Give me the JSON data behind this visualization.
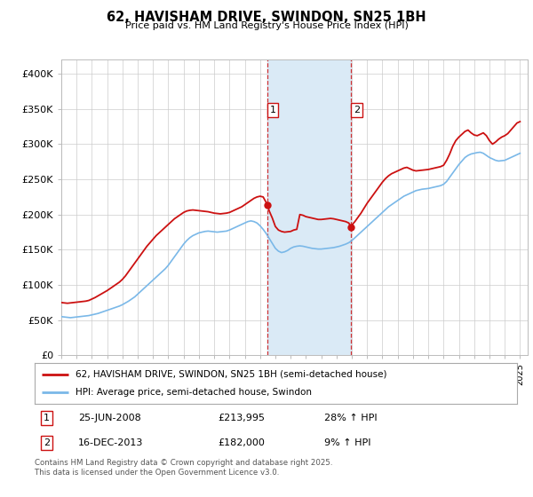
{
  "title": "62, HAVISHAM DRIVE, SWINDON, SN25 1BH",
  "subtitle": "Price paid vs. HM Land Registry's House Price Index (HPI)",
  "legend_line1": "62, HAVISHAM DRIVE, SWINDON, SN25 1BH (semi-detached house)",
  "legend_line2": "HPI: Average price, semi-detached house, Swindon",
  "footnote": "Contains HM Land Registry data © Crown copyright and database right 2025.\nThis data is licensed under the Open Government Licence v3.0.",
  "sale1_date": "25-JUN-2008",
  "sale1_price": "£213,995",
  "sale1_hpi": "28% ↑ HPI",
  "sale2_date": "16-DEC-2013",
  "sale2_price": "£182,000",
  "sale2_hpi": "9% ↑ HPI",
  "ylim": [
    0,
    420000
  ],
  "yticks": [
    0,
    50000,
    100000,
    150000,
    200000,
    250000,
    300000,
    350000,
    400000
  ],
  "background_color": "#ffffff",
  "hpi_color": "#7ab8e8",
  "price_color": "#cc1111",
  "shading_color": "#daeaf6",
  "vline_color": "#cc1111",
  "sale1_x": 2008.48,
  "sale1_y": 213995,
  "sale2_x": 2013.96,
  "sale2_y": 182000,
  "shade_x1": 2008.48,
  "shade_x2": 2013.96,
  "xmin": 1995,
  "xmax": 2025.5,
  "hpi_data": [
    [
      1995.0,
      55000
    ],
    [
      1995.2,
      54500
    ],
    [
      1995.4,
      54000
    ],
    [
      1995.6,
      53500
    ],
    [
      1995.8,
      54000
    ],
    [
      1996.0,
      54500
    ],
    [
      1996.2,
      55000
    ],
    [
      1996.4,
      55500
    ],
    [
      1996.6,
      56000
    ],
    [
      1996.8,
      56500
    ],
    [
      1997.0,
      57500
    ],
    [
      1997.2,
      58500
    ],
    [
      1997.4,
      59500
    ],
    [
      1997.6,
      61000
    ],
    [
      1997.8,
      62500
    ],
    [
      1998.0,
      64000
    ],
    [
      1998.2,
      65500
    ],
    [
      1998.4,
      67000
    ],
    [
      1998.6,
      68500
    ],
    [
      1998.8,
      70000
    ],
    [
      1999.0,
      72000
    ],
    [
      1999.2,
      74500
    ],
    [
      1999.4,
      77000
    ],
    [
      1999.6,
      80000
    ],
    [
      1999.8,
      83000
    ],
    [
      2000.0,
      87000
    ],
    [
      2000.2,
      91000
    ],
    [
      2000.4,
      95000
    ],
    [
      2000.6,
      99000
    ],
    [
      2000.8,
      103000
    ],
    [
      2001.0,
      107000
    ],
    [
      2001.2,
      111000
    ],
    [
      2001.4,
      115000
    ],
    [
      2001.6,
      119000
    ],
    [
      2001.8,
      123000
    ],
    [
      2002.0,
      128000
    ],
    [
      2002.2,
      134000
    ],
    [
      2002.4,
      140000
    ],
    [
      2002.6,
      146000
    ],
    [
      2002.8,
      152000
    ],
    [
      2003.0,
      158000
    ],
    [
      2003.2,
      163000
    ],
    [
      2003.4,
      167000
    ],
    [
      2003.6,
      170000
    ],
    [
      2003.8,
      172000
    ],
    [
      2004.0,
      174000
    ],
    [
      2004.2,
      175000
    ],
    [
      2004.4,
      176000
    ],
    [
      2004.6,
      176500
    ],
    [
      2004.8,
      176000
    ],
    [
      2005.0,
      175500
    ],
    [
      2005.2,
      175000
    ],
    [
      2005.4,
      175500
    ],
    [
      2005.6,
      176000
    ],
    [
      2005.8,
      176500
    ],
    [
      2006.0,
      178000
    ],
    [
      2006.2,
      180000
    ],
    [
      2006.4,
      182000
    ],
    [
      2006.6,
      184000
    ],
    [
      2006.8,
      186000
    ],
    [
      2007.0,
      188000
    ],
    [
      2007.2,
      190000
    ],
    [
      2007.4,
      191000
    ],
    [
      2007.6,
      190000
    ],
    [
      2007.8,
      188000
    ],
    [
      2008.0,
      184000
    ],
    [
      2008.2,
      179000
    ],
    [
      2008.4,
      173000
    ],
    [
      2008.6,
      166000
    ],
    [
      2008.8,
      159000
    ],
    [
      2009.0,
      152000
    ],
    [
      2009.2,
      148000
    ],
    [
      2009.4,
      146000
    ],
    [
      2009.6,
      147000
    ],
    [
      2009.8,
      149000
    ],
    [
      2010.0,
      152000
    ],
    [
      2010.2,
      154000
    ],
    [
      2010.4,
      155000
    ],
    [
      2010.6,
      155500
    ],
    [
      2010.8,
      155000
    ],
    [
      2011.0,
      154000
    ],
    [
      2011.2,
      153000
    ],
    [
      2011.4,
      152000
    ],
    [
      2011.6,
      151500
    ],
    [
      2011.8,
      151000
    ],
    [
      2012.0,
      151000
    ],
    [
      2012.2,
      151500
    ],
    [
      2012.4,
      152000
    ],
    [
      2012.6,
      152500
    ],
    [
      2012.8,
      153000
    ],
    [
      2013.0,
      154000
    ],
    [
      2013.2,
      155000
    ],
    [
      2013.4,
      156500
    ],
    [
      2013.6,
      158000
    ],
    [
      2013.8,
      160000
    ],
    [
      2014.0,
      163000
    ],
    [
      2014.2,
      167000
    ],
    [
      2014.4,
      171000
    ],
    [
      2014.6,
      175000
    ],
    [
      2014.8,
      179000
    ],
    [
      2015.0,
      183000
    ],
    [
      2015.2,
      187000
    ],
    [
      2015.4,
      191000
    ],
    [
      2015.6,
      195000
    ],
    [
      2015.8,
      199000
    ],
    [
      2016.0,
      203000
    ],
    [
      2016.2,
      207000
    ],
    [
      2016.4,
      211000
    ],
    [
      2016.6,
      214000
    ],
    [
      2016.8,
      217000
    ],
    [
      2017.0,
      220000
    ],
    [
      2017.2,
      223000
    ],
    [
      2017.4,
      226000
    ],
    [
      2017.6,
      228000
    ],
    [
      2017.8,
      230000
    ],
    [
      2018.0,
      232000
    ],
    [
      2018.2,
      234000
    ],
    [
      2018.4,
      235000
    ],
    [
      2018.6,
      236000
    ],
    [
      2018.8,
      236500
    ],
    [
      2019.0,
      237000
    ],
    [
      2019.2,
      238000
    ],
    [
      2019.4,
      239000
    ],
    [
      2019.6,
      240000
    ],
    [
      2019.8,
      241000
    ],
    [
      2020.0,
      243000
    ],
    [
      2020.2,
      247000
    ],
    [
      2020.4,
      253000
    ],
    [
      2020.6,
      259000
    ],
    [
      2020.8,
      265000
    ],
    [
      2021.0,
      271000
    ],
    [
      2021.2,
      276000
    ],
    [
      2021.4,
      281000
    ],
    [
      2021.6,
      284000
    ],
    [
      2021.8,
      286000
    ],
    [
      2022.0,
      287000
    ],
    [
      2022.2,
      288000
    ],
    [
      2022.4,
      288500
    ],
    [
      2022.6,
      287000
    ],
    [
      2022.8,
      284000
    ],
    [
      2023.0,
      281000
    ],
    [
      2023.2,
      279000
    ],
    [
      2023.4,
      277000
    ],
    [
      2023.6,
      276000
    ],
    [
      2023.8,
      276500
    ],
    [
      2024.0,
      277000
    ],
    [
      2024.2,
      279000
    ],
    [
      2024.4,
      281000
    ],
    [
      2024.6,
      283000
    ],
    [
      2024.8,
      285000
    ],
    [
      2025.0,
      287000
    ]
  ],
  "price_data": [
    [
      1995.0,
      75000
    ],
    [
      1995.2,
      74500
    ],
    [
      1995.4,
      74000
    ],
    [
      1995.6,
      74500
    ],
    [
      1995.8,
      75000
    ],
    [
      1996.0,
      75500
    ],
    [
      1996.2,
      76000
    ],
    [
      1996.4,
      76500
    ],
    [
      1996.6,
      77000
    ],
    [
      1996.8,
      78000
    ],
    [
      1997.0,
      80000
    ],
    [
      1997.2,
      82000
    ],
    [
      1997.4,
      84500
    ],
    [
      1997.6,
      87000
    ],
    [
      1997.8,
      89500
    ],
    [
      1998.0,
      92000
    ],
    [
      1998.2,
      95000
    ],
    [
      1998.4,
      98000
    ],
    [
      1998.6,
      101000
    ],
    [
      1998.8,
      104000
    ],
    [
      1999.0,
      108000
    ],
    [
      1999.2,
      113000
    ],
    [
      1999.4,
      119000
    ],
    [
      1999.6,
      125000
    ],
    [
      1999.8,
      131000
    ],
    [
      2000.0,
      137000
    ],
    [
      2000.2,
      143000
    ],
    [
      2000.4,
      149000
    ],
    [
      2000.6,
      155000
    ],
    [
      2000.8,
      160000
    ],
    [
      2001.0,
      165000
    ],
    [
      2001.2,
      170000
    ],
    [
      2001.4,
      174000
    ],
    [
      2001.6,
      178000
    ],
    [
      2001.8,
      182000
    ],
    [
      2002.0,
      186000
    ],
    [
      2002.2,
      190000
    ],
    [
      2002.4,
      194000
    ],
    [
      2002.6,
      197000
    ],
    [
      2002.8,
      200000
    ],
    [
      2003.0,
      203000
    ],
    [
      2003.2,
      205000
    ],
    [
      2003.4,
      206000
    ],
    [
      2003.6,
      206500
    ],
    [
      2003.8,
      206000
    ],
    [
      2004.0,
      205500
    ],
    [
      2004.2,
      205000
    ],
    [
      2004.4,
      204500
    ],
    [
      2004.6,
      204000
    ],
    [
      2004.8,
      203000
    ],
    [
      2005.0,
      202000
    ],
    [
      2005.2,
      201500
    ],
    [
      2005.4,
      201000
    ],
    [
      2005.6,
      201500
    ],
    [
      2005.8,
      202000
    ],
    [
      2006.0,
      203000
    ],
    [
      2006.2,
      205000
    ],
    [
      2006.4,
      207000
    ],
    [
      2006.6,
      209000
    ],
    [
      2006.8,
      211000
    ],
    [
      2007.0,
      214000
    ],
    [
      2007.2,
      217000
    ],
    [
      2007.4,
      220000
    ],
    [
      2007.6,
      223000
    ],
    [
      2007.8,
      225000
    ],
    [
      2008.0,
      226000
    ],
    [
      2008.2,
      225000
    ],
    [
      2008.48,
      213995
    ],
    [
      2008.6,
      205000
    ],
    [
      2008.8,
      195000
    ],
    [
      2009.0,
      183000
    ],
    [
      2009.2,
      178000
    ],
    [
      2009.4,
      176000
    ],
    [
      2009.6,
      175000
    ],
    [
      2009.8,
      175500
    ],
    [
      2010.0,
      176000
    ],
    [
      2010.2,
      178000
    ],
    [
      2010.4,
      179000
    ],
    [
      2010.6,
      200000
    ],
    [
      2010.8,
      199000
    ],
    [
      2011.0,
      197000
    ],
    [
      2011.2,
      196000
    ],
    [
      2011.4,
      195000
    ],
    [
      2011.6,
      194000
    ],
    [
      2011.8,
      193000
    ],
    [
      2012.0,
      193000
    ],
    [
      2012.2,
      193500
    ],
    [
      2012.4,
      194000
    ],
    [
      2012.6,
      194500
    ],
    [
      2012.8,
      194000
    ],
    [
      2013.0,
      193000
    ],
    [
      2013.2,
      192000
    ],
    [
      2013.4,
      191000
    ],
    [
      2013.6,
      190000
    ],
    [
      2013.8,
      188000
    ],
    [
      2013.96,
      182000
    ],
    [
      2014.0,
      185000
    ],
    [
      2014.2,
      190000
    ],
    [
      2014.4,
      196000
    ],
    [
      2014.6,
      202000
    ],
    [
      2014.8,
      209000
    ],
    [
      2015.0,
      216000
    ],
    [
      2015.2,
      222000
    ],
    [
      2015.4,
      228000
    ],
    [
      2015.6,
      234000
    ],
    [
      2015.8,
      240000
    ],
    [
      2016.0,
      246000
    ],
    [
      2016.2,
      251000
    ],
    [
      2016.4,
      255000
    ],
    [
      2016.6,
      258000
    ],
    [
      2016.8,
      260000
    ],
    [
      2017.0,
      262000
    ],
    [
      2017.2,
      264000
    ],
    [
      2017.4,
      266000
    ],
    [
      2017.6,
      267000
    ],
    [
      2017.8,
      265000
    ],
    [
      2018.0,
      263000
    ],
    [
      2018.2,
      262000
    ],
    [
      2018.4,
      262500
    ],
    [
      2018.6,
      263000
    ],
    [
      2018.8,
      263500
    ],
    [
      2019.0,
      264000
    ],
    [
      2019.2,
      265000
    ],
    [
      2019.4,
      266000
    ],
    [
      2019.6,
      267000
    ],
    [
      2019.8,
      268000
    ],
    [
      2020.0,
      270000
    ],
    [
      2020.2,
      277000
    ],
    [
      2020.4,
      286000
    ],
    [
      2020.6,
      297000
    ],
    [
      2020.8,
      305000
    ],
    [
      2021.0,
      310000
    ],
    [
      2021.2,
      314000
    ],
    [
      2021.4,
      318000
    ],
    [
      2021.6,
      320000
    ],
    [
      2021.8,
      316000
    ],
    [
      2022.0,
      313000
    ],
    [
      2022.2,
      312000
    ],
    [
      2022.4,
      314000
    ],
    [
      2022.6,
      316000
    ],
    [
      2022.8,
      312000
    ],
    [
      2023.0,
      305000
    ],
    [
      2023.2,
      300000
    ],
    [
      2023.4,
      303000
    ],
    [
      2023.6,
      307000
    ],
    [
      2023.8,
      310000
    ],
    [
      2024.0,
      312000
    ],
    [
      2024.2,
      315000
    ],
    [
      2024.4,
      320000
    ],
    [
      2024.6,
      325000
    ],
    [
      2024.8,
      330000
    ],
    [
      2025.0,
      332000
    ]
  ],
  "xticks": [
    1995,
    1996,
    1997,
    1998,
    1999,
    2000,
    2001,
    2002,
    2003,
    2004,
    2005,
    2006,
    2007,
    2008,
    2009,
    2010,
    2011,
    2012,
    2013,
    2014,
    2015,
    2016,
    2017,
    2018,
    2019,
    2020,
    2021,
    2022,
    2023,
    2024,
    2025
  ]
}
